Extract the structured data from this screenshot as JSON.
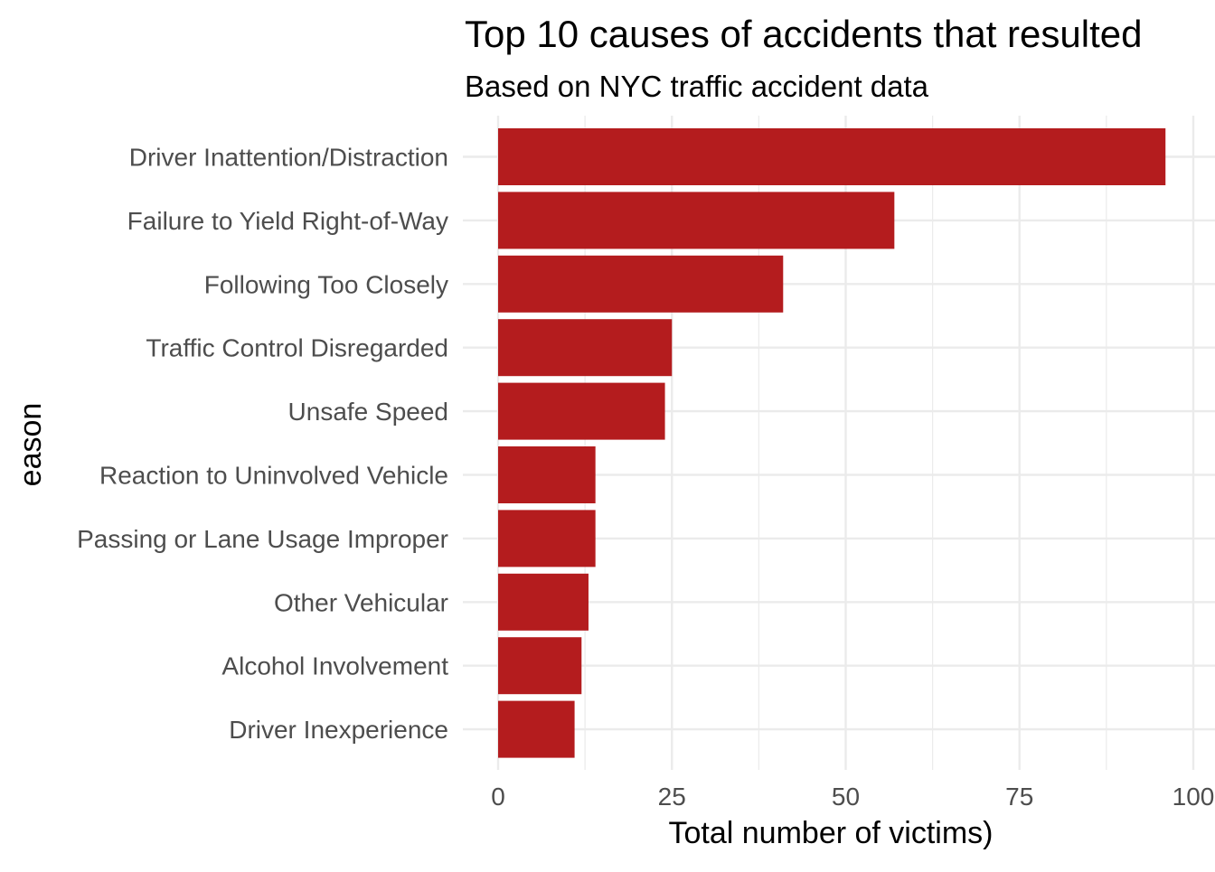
{
  "chart_data": {
    "type": "bar",
    "orientation": "horizontal",
    "title": "Top 10 causes of accidents that resulted",
    "subtitle": "Based on NYC traffic accident data",
    "xlabel": "Total number of victims)",
    "ylabel": "eason",
    "categories": [
      "Driver Inattention/Distraction",
      "Failure to Yield Right-of-Way",
      "Following Too Closely",
      "Traffic Control Disregarded",
      "Unsafe Speed",
      "Reaction to Uninvolved Vehicle",
      "Passing or Lane Usage Improper",
      "Other Vehicular",
      "Alcohol Involvement",
      "Driver Inexperience"
    ],
    "values": [
      96,
      57,
      41,
      25,
      24,
      14,
      14,
      13,
      12,
      11
    ],
    "xlim": [
      0,
      100
    ],
    "xticks": [
      0,
      25,
      50,
      75,
      100
    ],
    "xtick_labels": [
      "0",
      "25",
      "50",
      "75",
      "100"
    ],
    "grid": true,
    "legend": "none",
    "colors": {
      "bar": "#B41C1E",
      "grid": "#EBEBEB",
      "tick_text": "#4D4D4D",
      "title_text": "#000000"
    }
  }
}
